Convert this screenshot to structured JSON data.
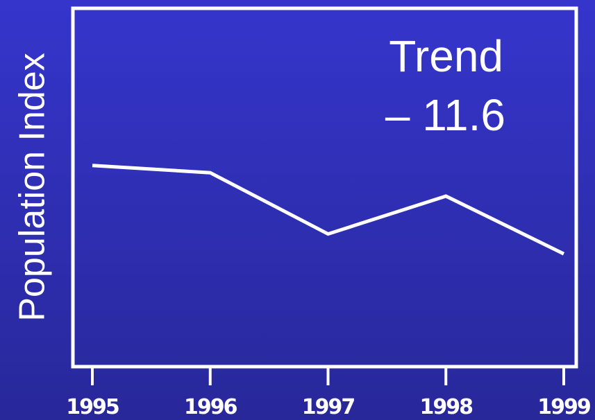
{
  "chart_data": {
    "type": "line",
    "ylabel": "Population Index",
    "annotations": [
      "Trend",
      "– 11.6"
    ],
    "categories": [
      "1995",
      "1996",
      "1997",
      "1998",
      "1999"
    ],
    "series": [
      {
        "name": "Population Index",
        "color": "#ffffff",
        "values": [
          56,
          54,
          37,
          47.5,
          31.5
        ]
      }
    ],
    "ylim": [
      0,
      100
    ]
  }
}
